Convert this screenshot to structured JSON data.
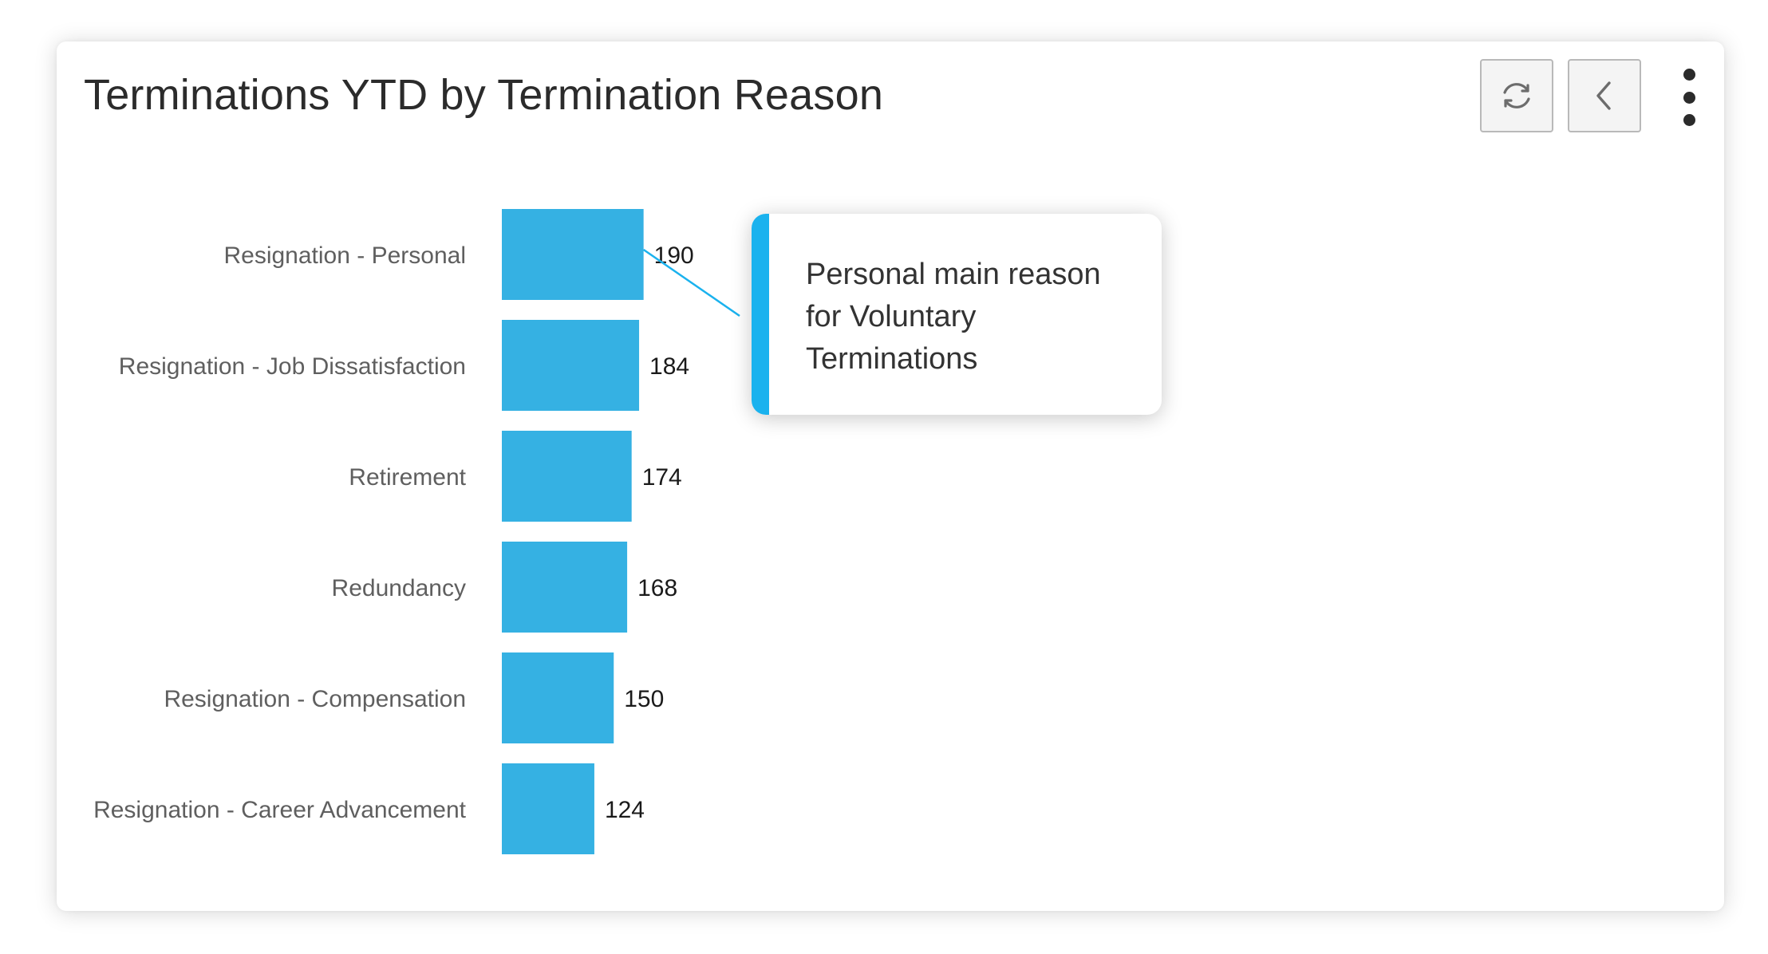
{
  "header": {
    "title": "Terminations YTD by Termination Reason"
  },
  "toolbar": {
    "refresh_icon": "refresh-icon",
    "back_icon": "chevron-left-icon",
    "more_icon": "more-vertical-icon"
  },
  "callout": {
    "text": "Personal main reason for Voluntary Terminations"
  },
  "colors": {
    "bar": "#35b1e3",
    "accent": "#1ab2ee",
    "category_label": "#5f5f5f",
    "value_label": "#1a1a1a"
  },
  "chart_data": {
    "type": "bar",
    "orientation": "horizontal",
    "title": "Terminations YTD by Termination Reason",
    "categories": [
      "Resignation - Personal",
      "Resignation - Job Dissatisfaction",
      "Retirement",
      "Redundancy",
      "Resignation - Compensation",
      "Resignation - Career Advancement"
    ],
    "values": [
      190,
      184,
      174,
      168,
      150,
      124
    ],
    "data_labels": true,
    "grid": false,
    "annotation": {
      "category": "Resignation - Personal",
      "text": "Personal main reason for Voluntary Terminations"
    }
  }
}
